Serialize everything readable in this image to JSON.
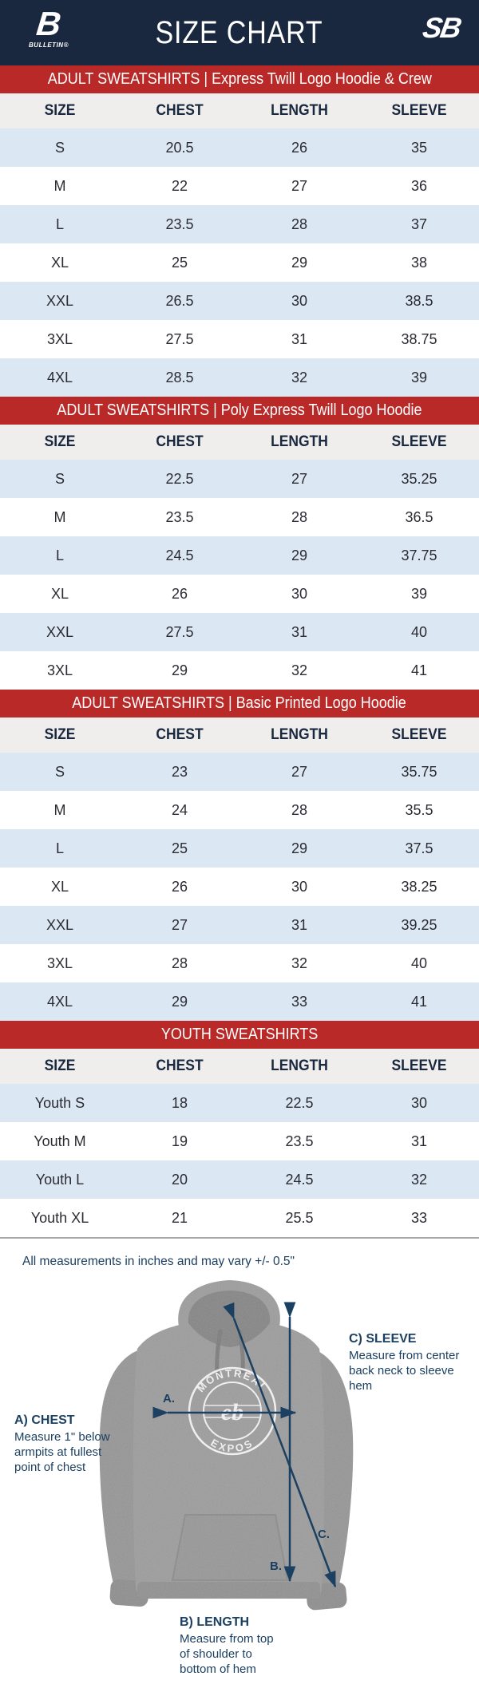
{
  "header": {
    "title": "SIZE CHART",
    "brand_left": {
      "monogram": "B",
      "label": "BULLETIN®"
    },
    "brand_right": {
      "monogram": "SB"
    }
  },
  "columns": [
    "SIZE",
    "CHEST",
    "LENGTH",
    "SLEEVE"
  ],
  "sections": [
    {
      "title": "ADULT SWEATSHIRTS | Express Twill Logo Hoodie & Crew",
      "rows": [
        [
          "S",
          "20.5",
          "26",
          "35"
        ],
        [
          "M",
          "22",
          "27",
          "36"
        ],
        [
          "L",
          "23.5",
          "28",
          "37"
        ],
        [
          "XL",
          "25",
          "29",
          "38"
        ],
        [
          "XXL",
          "26.5",
          "30",
          "38.5"
        ],
        [
          "3XL",
          "27.5",
          "31",
          "38.75"
        ],
        [
          "4XL",
          "28.5",
          "32",
          "39"
        ]
      ]
    },
    {
      "title": "ADULT SWEATSHIRTS | Poly Express Twill Logo Hoodie",
      "rows": [
        [
          "S",
          "22.5",
          "27",
          "35.25"
        ],
        [
          "M",
          "23.5",
          "28",
          "36.5"
        ],
        [
          "L",
          "24.5",
          "29",
          "37.75"
        ],
        [
          "XL",
          "26",
          "30",
          "39"
        ],
        [
          "XXL",
          "27.5",
          "31",
          "40"
        ],
        [
          "3XL",
          "29",
          "32",
          "41"
        ]
      ]
    },
    {
      "title": "ADULT SWEATSHIRTS | Basic Printed Logo Hoodie",
      "rows": [
        [
          "S",
          "23",
          "27",
          "35.75"
        ],
        [
          "M",
          "24",
          "28",
          "35.5"
        ],
        [
          "L",
          "25",
          "29",
          "37.5"
        ],
        [
          "XL",
          "26",
          "30",
          "38.25"
        ],
        [
          "XXL",
          "27",
          "31",
          "39.25"
        ],
        [
          "3XL",
          "28",
          "32",
          "40"
        ],
        [
          "4XL",
          "29",
          "33",
          "41"
        ]
      ]
    },
    {
      "title": "YOUTH SWEATSHIRTS",
      "rows": [
        [
          "Youth S",
          "18",
          "22.5",
          "30"
        ],
        [
          "Youth M",
          "19",
          "23.5",
          "31"
        ],
        [
          "Youth L",
          "20",
          "24.5",
          "32"
        ],
        [
          "Youth XL",
          "21",
          "25.5",
          "33"
        ]
      ]
    }
  ],
  "note": "All measurements in inches and may vary +/- 0.5\"",
  "diagram": {
    "logo": {
      "top": "MONTRÉAL",
      "bottom": "EXPOS",
      "center": "eb"
    },
    "labels": {
      "chest": {
        "title": "A) CHEST",
        "body": "Measure 1\" below\narmpits at fullest\npoint of chest"
      },
      "sleeve": {
        "title": "C) SLEEVE",
        "body": "Measure from center\nback neck to sleeve hem"
      },
      "length": {
        "title": "B) LENGTH",
        "body": "Measure from top\nof shoulder to\nbottom of hem"
      }
    },
    "markers": {
      "a": "A.",
      "b": "B.",
      "c": "C."
    }
  },
  "colors": {
    "navy": "#19283f",
    "red": "#b92928",
    "row_alt_blue": "#dbe7f2",
    "header_row_gray": "#efeeec",
    "arrow_steel_blue": "#1c4061",
    "hoodie_gray": "#9c9c9c"
  }
}
